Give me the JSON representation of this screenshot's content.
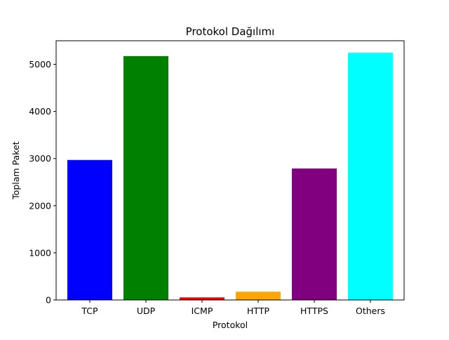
{
  "chart_data": {
    "type": "bar",
    "title": "Protokol Dağılımı",
    "xlabel": "Protokol",
    "ylabel": "Toplam Paket",
    "categories": [
      "TCP",
      "UDP",
      "ICMP",
      "HTTP",
      "HTTPS",
      "Others"
    ],
    "values": [
      2970,
      5175,
      55,
      175,
      2790,
      5245
    ],
    "colors": [
      "#0000ff",
      "#008000",
      "#ff0000",
      "#ffa500",
      "#800080",
      "#00ffff"
    ],
    "ylim": [
      0,
      5500
    ],
    "yticks": [
      0,
      1000,
      2000,
      3000,
      4000,
      5000
    ],
    "grid": false,
    "legend": "none"
  }
}
